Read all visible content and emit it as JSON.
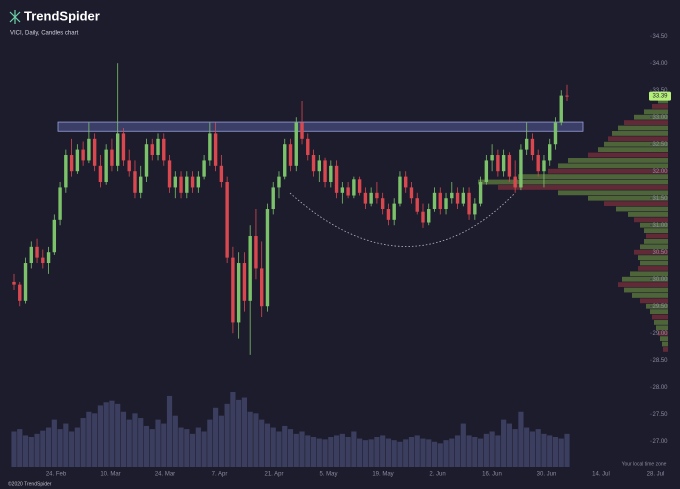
{
  "header": {
    "brand": "TrendSpider",
    "subtitle": "VICI, Daily, Candles chart",
    "footer": "©2020 TrendSpider",
    "timezone_note": "Your local time zone"
  },
  "chart_data": {
    "type": "candlestick",
    "up_color": "#7cc26a",
    "down_color": "#d9484f",
    "volume_color": "#3b3e5e",
    "profile_color": "#5f7d3f",
    "ylim": [
      26.56,
      34.8
    ],
    "yticks": [
      {
        "value": 34.5,
        "label": "34.50"
      },
      {
        "value": 34,
        "label": "34.00"
      },
      {
        "value": 33.5,
        "label": "33.50"
      },
      {
        "value": 33,
        "label": "33.00"
      },
      {
        "value": 32.5,
        "label": "32.50"
      },
      {
        "value": 32,
        "label": "32.00"
      },
      {
        "value": 31.5,
        "label": "31.50"
      },
      {
        "value": 31,
        "label": "31.00"
      },
      {
        "value": 30.5,
        "label": "30.50"
      },
      {
        "value": 30,
        "label": "30.00"
      },
      {
        "value": 29.5,
        "label": "29.50"
      },
      {
        "value": 29,
        "label": "29.00"
      },
      {
        "value": 28.5,
        "label": "28.50"
      },
      {
        "value": 28,
        "label": "28.00"
      },
      {
        "value": 27.5,
        "label": "27.50"
      },
      {
        "value": 27,
        "label": "27.00"
      }
    ],
    "xticks": [
      "24. Feb",
      "10. Mar",
      "24. Mar",
      "7. Apr",
      "21. Apr",
      "5. May",
      "19. May",
      "2. Jun",
      "16. Jun",
      "30. Jun",
      "14. Jul",
      "28. Jul"
    ],
    "last_label": "33.39",
    "zone": [
      32.74,
      32.91
    ],
    "candles": [
      [
        29.95,
        30.1,
        29.8,
        29.9
      ],
      [
        29.9,
        29.95,
        29.5,
        29.6
      ],
      [
        29.6,
        30.4,
        29.55,
        30.3
      ],
      [
        30.3,
        30.7,
        30.2,
        30.6
      ],
      [
        30.6,
        30.75,
        30.3,
        30.4
      ],
      [
        30.4,
        30.55,
        30.2,
        30.3
      ],
      [
        30.3,
        30.6,
        30.1,
        30.5
      ],
      [
        30.5,
        31.2,
        30.45,
        31.1
      ],
      [
        31.1,
        31.8,
        31.0,
        31.7
      ],
      [
        31.7,
        32.4,
        31.6,
        32.3
      ],
      [
        32.3,
        32.6,
        31.9,
        32.0
      ],
      [
        32.0,
        32.5,
        31.95,
        32.4
      ],
      [
        32.4,
        32.55,
        32.1,
        32.2
      ],
      [
        32.2,
        32.9,
        32.15,
        32.6
      ],
      [
        32.6,
        32.7,
        32.0,
        32.1
      ],
      [
        32.1,
        32.3,
        31.7,
        31.8
      ],
      [
        31.8,
        32.5,
        31.75,
        32.4
      ],
      [
        32.4,
        32.6,
        32.0,
        32.1
      ],
      [
        32.1,
        34.0,
        32.0,
        32.7
      ],
      [
        32.7,
        32.8,
        32.1,
        32.2
      ],
      [
        32.2,
        32.4,
        31.9,
        32.0
      ],
      [
        32.0,
        32.2,
        31.5,
        31.6
      ],
      [
        31.6,
        32.1,
        31.5,
        31.9
      ],
      [
        31.9,
        32.6,
        31.8,
        32.5
      ],
      [
        32.5,
        32.6,
        32.2,
        32.3
      ],
      [
        32.3,
        32.7,
        32.2,
        32.6
      ],
      [
        32.6,
        32.7,
        32.1,
        32.2
      ],
      [
        32.2,
        32.3,
        31.6,
        31.7
      ],
      [
        31.7,
        32.0,
        31.5,
        31.9
      ],
      [
        31.9,
        32.0,
        31.5,
        31.6
      ],
      [
        31.6,
        32.0,
        31.5,
        31.9
      ],
      [
        31.9,
        32.0,
        31.6,
        31.7
      ],
      [
        31.7,
        32.0,
        31.6,
        31.9
      ],
      [
        31.9,
        32.3,
        31.85,
        32.2
      ],
      [
        32.2,
        32.9,
        32.1,
        32.7
      ],
      [
        32.7,
        32.9,
        32.0,
        32.1
      ],
      [
        32.1,
        32.3,
        31.7,
        31.8
      ],
      [
        31.8,
        31.9,
        30.3,
        30.4
      ],
      [
        30.4,
        30.6,
        29.0,
        29.2
      ],
      [
        29.2,
        30.5,
        28.9,
        30.3
      ],
      [
        30.3,
        30.5,
        29.4,
        29.6
      ],
      [
        29.6,
        31.0,
        28.6,
        30.8
      ],
      [
        30.8,
        31.3,
        30.0,
        30.2
      ],
      [
        30.2,
        30.7,
        29.3,
        29.5
      ],
      [
        29.5,
        31.4,
        29.4,
        31.3
      ],
      [
        31.3,
        31.8,
        31.2,
        31.7
      ],
      [
        31.7,
        32.0,
        31.5,
        31.9
      ],
      [
        31.9,
        32.6,
        31.85,
        32.5
      ],
      [
        32.5,
        32.6,
        32.0,
        32.1
      ],
      [
        32.1,
        33.0,
        32.0,
        32.9
      ],
      [
        32.9,
        33.3,
        32.5,
        32.6
      ],
      [
        32.6,
        32.7,
        32.2,
        32.3
      ],
      [
        32.3,
        32.4,
        31.9,
        32.0
      ],
      [
        32.0,
        32.3,
        31.8,
        32.2
      ],
      [
        32.2,
        32.25,
        31.7,
        31.8
      ],
      [
        31.8,
        32.2,
        31.7,
        32.1
      ],
      [
        32.1,
        32.2,
        31.5,
        31.6
      ],
      [
        31.6,
        31.8,
        31.4,
        31.7
      ],
      [
        31.7,
        31.8,
        31.5,
        31.55
      ],
      [
        31.55,
        31.9,
        31.5,
        31.85
      ],
      [
        31.85,
        31.9,
        31.55,
        31.6
      ],
      [
        31.6,
        31.7,
        31.3,
        31.4
      ],
      [
        31.4,
        31.7,
        31.35,
        31.6
      ],
      [
        31.6,
        31.8,
        31.4,
        31.5
      ],
      [
        31.5,
        31.6,
        31.2,
        31.3
      ],
      [
        31.3,
        31.4,
        31.0,
        31.1
      ],
      [
        31.1,
        31.5,
        31.0,
        31.4
      ],
      [
        31.4,
        32.0,
        31.35,
        31.9
      ],
      [
        31.9,
        32.0,
        31.6,
        31.7
      ],
      [
        31.7,
        31.8,
        31.4,
        31.5
      ],
      [
        31.5,
        31.6,
        31.2,
        31.25
      ],
      [
        31.25,
        31.4,
        30.95,
        31.05
      ],
      [
        31.05,
        31.4,
        31.0,
        31.3
      ],
      [
        31.3,
        31.7,
        31.25,
        31.6
      ],
      [
        31.6,
        31.7,
        31.2,
        31.3
      ],
      [
        31.3,
        31.6,
        31.2,
        31.5
      ],
      [
        31.5,
        31.8,
        31.4,
        31.6
      ],
      [
        31.6,
        31.7,
        31.3,
        31.4
      ],
      [
        31.4,
        31.7,
        31.35,
        31.6
      ],
      [
        31.6,
        31.7,
        31.1,
        31.2
      ],
      [
        31.2,
        31.5,
        31.1,
        31.4
      ],
      [
        31.4,
        31.9,
        31.35,
        31.8
      ],
      [
        31.8,
        32.3,
        31.75,
        32.2
      ],
      [
        32.2,
        32.5,
        32.0,
        32.3
      ],
      [
        32.3,
        32.4,
        31.9,
        32.0
      ],
      [
        32.0,
        32.4,
        31.9,
        32.3
      ],
      [
        32.3,
        32.35,
        31.8,
        31.9
      ],
      [
        31.9,
        32.2,
        31.6,
        31.7
      ],
      [
        31.7,
        32.5,
        31.65,
        32.4
      ],
      [
        32.4,
        32.9,
        32.3,
        32.6
      ],
      [
        32.6,
        32.7,
        32.2,
        32.3
      ],
      [
        32.3,
        32.4,
        31.9,
        32.0
      ],
      [
        32.0,
        32.3,
        31.7,
        32.2
      ],
      [
        32.2,
        32.6,
        32.1,
        32.5
      ],
      [
        32.5,
        33.0,
        32.4,
        32.9
      ],
      [
        32.9,
        33.5,
        32.85,
        33.4
      ],
      [
        33.4,
        33.6,
        33.3,
        33.39
      ]
    ],
    "volume": [
      4.5,
      4.8,
      4.0,
      3.8,
      4.2,
      4.6,
      5.0,
      6.0,
      4.8,
      5.5,
      4.5,
      5.0,
      6.2,
      7.0,
      6.8,
      7.8,
      8.2,
      8.4,
      8.0,
      7.0,
      6.0,
      6.8,
      6.2,
      5.2,
      4.8,
      6.0,
      5.5,
      9.0,
      6.5,
      5.0,
      4.8,
      4.2,
      5.0,
      4.5,
      6.0,
      7.5,
      6.5,
      8.0,
      9.5,
      8.5,
      8.8,
      7.0,
      6.8,
      6.0,
      5.5,
      5.0,
      4.5,
      5.2,
      4.8,
      4.2,
      4.5,
      4.0,
      3.8,
      3.6,
      3.5,
      3.8,
      4.0,
      4.2,
      3.8,
      4.5,
      3.6,
      3.4,
      3.5,
      3.8,
      4.0,
      3.6,
      3.4,
      3.2,
      3.5,
      3.8,
      4.0,
      3.6,
      3.5,
      3.2,
      3.0,
      3.4,
      3.6,
      4.0,
      5.5,
      4.0,
      3.8,
      3.6,
      4.2,
      4.5,
      4.0,
      6.0,
      5.5,
      4.8,
      7.0,
      5.0,
      4.5,
      4.8,
      4.2,
      4.0,
      3.8,
      3.6,
      4.2
    ],
    "profile": {
      "levels": [
        28.7,
        28.8,
        28.9,
        29.0,
        29.1,
        29.2,
        29.3,
        29.4,
        29.5,
        29.6,
        29.7,
        29.8,
        29.9,
        30.0,
        30.1,
        30.2,
        30.3,
        30.4,
        30.5,
        30.6,
        30.7,
        30.8,
        30.9,
        31.0,
        31.1,
        31.2,
        31.3,
        31.4,
        31.5,
        31.6,
        31.7,
        31.8,
        31.9,
        32.0,
        32.1,
        32.2,
        32.3,
        32.4,
        32.5,
        32.6,
        32.7,
        32.8,
        32.9,
        33.0,
        33.1,
        33.2,
        33.3
      ],
      "values": [
        5,
        6,
        8,
        10,
        12,
        14,
        16,
        18,
        22,
        28,
        36,
        44,
        50,
        46,
        38,
        30,
        28,
        30,
        34,
        28,
        24,
        22,
        24,
        28,
        34,
        40,
        52,
        64,
        80,
        110,
        170,
        190,
        150,
        120,
        110,
        100,
        80,
        70,
        64,
        60,
        56,
        50,
        44,
        34,
        24,
        16,
        10
      ]
    }
  }
}
